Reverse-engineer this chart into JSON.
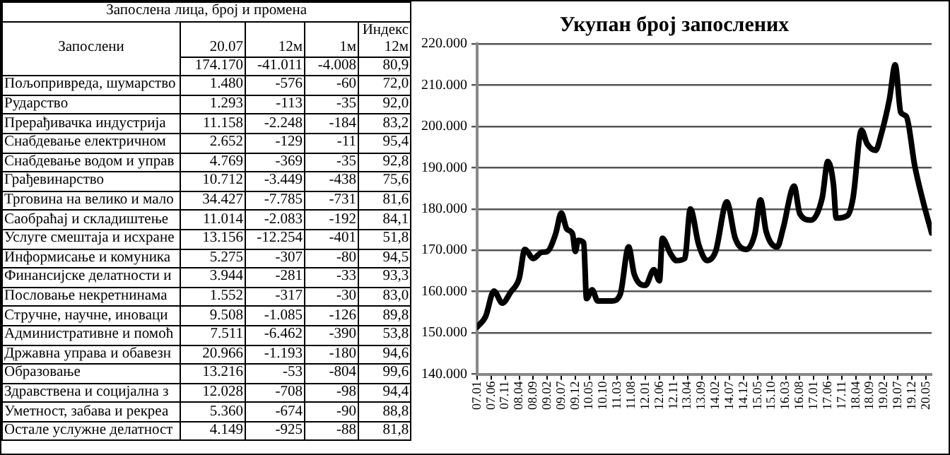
{
  "chart_data": [
    {
      "type": "other",
      "title": "Запослена лица, број и промена",
      "annotations": [
        "Запослени",
        "20.07",
        "12м",
        "1м",
        "Индекс 12м",
        "174.170",
        "-41.011",
        "-4.008",
        "80,9",
        "Пољопривреда, шумарство",
        "1.480",
        "-576",
        "-60",
        "72,0",
        "Рударство",
        "1.293",
        "-113",
        "-35",
        "92,0",
        "Прерађивачка индустрија",
        "11.158",
        "-2.248",
        "-184",
        "83,2",
        "Снабдевање електричном",
        "2.652",
        "-129",
        "-11",
        "95,4",
        "Снабдевање водом и управ",
        "4.769",
        "-369",
        "-35",
        "92,8",
        "Грађевинарство",
        "10.712",
        "-3.449",
        "-438",
        "75,6",
        "Трговина на велико и мало",
        "34.427",
        "-7.785",
        "-731",
        "81,6",
        "Саобраћај и складиштење",
        "11.014",
        "-2.083",
        "-192",
        "84,1",
        "Услуге смештаја и исхране",
        "13.156",
        "-12.254",
        "-401",
        "51,8",
        "Информисање и комуника",
        "5.275",
        "-307",
        "-80",
        "94,5",
        "Финансијске делатности и",
        "3.944",
        "-281",
        "-33",
        "93,3",
        "Пословање  некретнинама",
        "1.552",
        "-317",
        "-30",
        "83,0",
        "Стручне, научне, иноваци",
        "9.508",
        "-1.085",
        "-126",
        "89,8",
        "Административне и помоћ",
        "7.511",
        "-6.462",
        "-390",
        "53,8",
        "Државна управа и обавезн",
        "20.966",
        "-1.193",
        "-180",
        "94,6",
        "Образовање",
        "13.216",
        "-53",
        "-804",
        "99,6",
        "Здравствена и социјална з",
        "12.028",
        "-708",
        "-98",
        "94,4",
        "Уметност, забава и рекреа",
        "5.360",
        "-674",
        "-90",
        "88,8",
        "Остале услужне делатност",
        "4.149",
        "-925",
        "-88",
        "81,8"
      ]
    },
    {
      "type": "line",
      "title": "Укупан број запослених",
      "grid": "y",
      "legend": false,
      "marker": "none",
      "line_style": "solid",
      "xlim": [
        "2007-01",
        "2020-07"
      ],
      "xticks": [
        {
          "value": "2007-01",
          "label": "07.01"
        },
        {
          "value": "2007-06",
          "label": "07.06"
        },
        {
          "value": "2007-11",
          "label": "07.11"
        },
        {
          "value": "2008-04",
          "label": "08.04"
        },
        {
          "value": "2008-09",
          "label": "08.09"
        },
        {
          "value": "2009-02",
          "label": "09.02"
        },
        {
          "value": "2009-07",
          "label": "09.07"
        },
        {
          "value": "2009-12",
          "label": "09.12"
        },
        {
          "value": "2010-05",
          "label": "10.05"
        },
        {
          "value": "2010-10",
          "label": "10.10"
        },
        {
          "value": "2011-03",
          "label": "11.03"
        },
        {
          "value": "2011-08",
          "label": "11.08"
        },
        {
          "value": "2012-01",
          "label": "12.01"
        },
        {
          "value": "2012-06",
          "label": "12.06"
        },
        {
          "value": "2012-11",
          "label": "12.11"
        },
        {
          "value": "2013-04",
          "label": "13.04"
        },
        {
          "value": "2013-09",
          "label": "13.09"
        },
        {
          "value": "2014-02",
          "label": "14.02"
        },
        {
          "value": "2014-07",
          "label": "14.07"
        },
        {
          "value": "2014-12",
          "label": "14.12"
        },
        {
          "value": "2015-05",
          "label": "15.05"
        },
        {
          "value": "2015-10",
          "label": "15.10"
        },
        {
          "value": "2016-03",
          "label": "16.03"
        },
        {
          "value": "2016-08",
          "label": "16.08"
        },
        {
          "value": "2017-01",
          "label": "17.01"
        },
        {
          "value": "2017-06",
          "label": "17.06"
        },
        {
          "value": "2017-11",
          "label": "17.11"
        },
        {
          "value": "2018-04",
          "label": "18.04"
        },
        {
          "value": "2018-09",
          "label": "18.09"
        },
        {
          "value": "2019-02",
          "label": "19.02"
        },
        {
          "value": "2019-07",
          "label": "19.07"
        },
        {
          "value": "2019-12",
          "label": "19.12"
        },
        {
          "value": "2020-05",
          "label": "20.05"
        }
      ],
      "ylim": [
        140,
        220
      ],
      "yticks": [
        {
          "value": 140,
          "label": "140.000"
        },
        {
          "value": 150,
          "label": "150.000"
        },
        {
          "value": 160,
          "label": "160.000"
        },
        {
          "value": 170,
          "label": "170.000"
        },
        {
          "value": 180,
          "label": "180.000"
        },
        {
          "value": 190,
          "label": "190.000"
        },
        {
          "value": 200,
          "label": "200.000"
        },
        {
          "value": 210,
          "label": "210.000"
        },
        {
          "value": 220,
          "label": "220.000"
        }
      ],
      "series": [
        {
          "color": "#000000",
          "x": [
            "2007-01",
            "2007-04",
            "2007-07",
            "2007-10",
            "2008-01",
            "2008-04",
            "2008-06",
            "2008-09",
            "2008-12",
            "2009-02",
            "2009-05",
            "2009-07",
            "2009-09",
            "2009-11",
            "2009-12",
            "2010-01",
            "2010-03",
            "2010-04",
            "2010-06",
            "2010-08",
            "2011-01",
            "2011-04",
            "2011-07",
            "2011-09",
            "2012-01",
            "2012-04",
            "2012-06",
            "2012-07",
            "2012-10",
            "2012-12",
            "2013-03",
            "2013-05",
            "2013-08",
            "2013-11",
            "2014-02",
            "2014-06",
            "2014-09",
            "2015-01",
            "2015-04",
            "2015-06",
            "2015-08",
            "2015-12",
            "2016-02",
            "2016-06",
            "2016-08",
            "2016-12",
            "2017-04",
            "2017-06",
            "2017-08",
            "2017-09",
            "2018-01",
            "2018-03",
            "2018-06",
            "2018-08",
            "2018-11",
            "2019-01",
            "2019-04",
            "2019-06",
            "2019-08",
            "2019-10",
            "2020-01",
            "2020-04",
            "2020-07"
          ],
          "values": [
            151.4,
            153.9,
            160.1,
            157.2,
            159.9,
            163.2,
            170.2,
            168.0,
            169.5,
            169.7,
            174.0,
            179.0,
            175.1,
            174.0,
            169.7,
            172.4,
            171.8,
            158.3,
            160.4,
            157.7,
            157.7,
            159.3,
            170.8,
            164.2,
            161.5,
            165.3,
            162.6,
            172.9,
            169.1,
            167.5,
            168.0,
            180.0,
            171.3,
            167.5,
            169.7,
            181.7,
            172.9,
            170.2,
            174.0,
            182.2,
            174.6,
            170.8,
            175.1,
            185.5,
            178.9,
            177.3,
            182.7,
            191.5,
            186.0,
            177.8,
            178.4,
            182.7,
            199.1,
            195.8,
            194.2,
            198.0,
            206.7,
            214.9,
            203.4,
            202.4,
            190.4,
            181.7,
            174.2
          ]
        }
      ]
    }
  ]
}
